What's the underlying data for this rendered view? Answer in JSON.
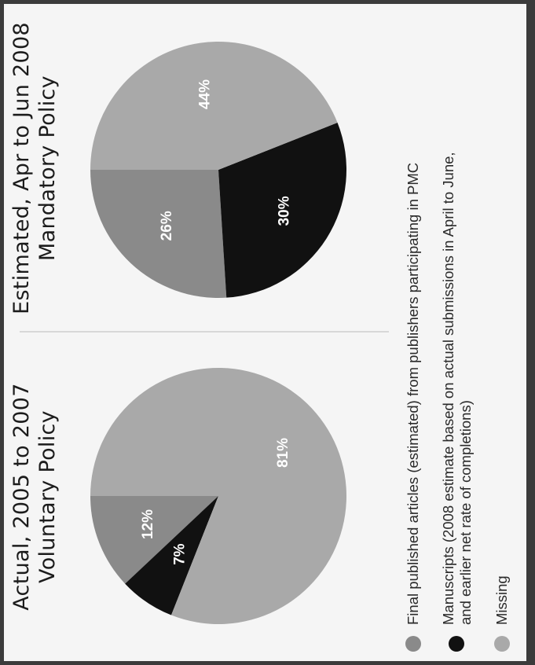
{
  "colors": {
    "final_published": "#8a8a8a",
    "manuscripts": "#111111",
    "missing": "#a9a9a9"
  },
  "chart_data": [
    {
      "type": "pie",
      "title_line1": "Actual, 2005 to 2007",
      "title_line2": "Voluntary Policy",
      "slices": [
        {
          "name": "Final published articles (estimated) from publishers participating in PMC",
          "value": 12,
          "label": "12%"
        },
        {
          "name": "Manuscripts (2008 estimate based on actual submissions in April to June, and earlier net rate of completions)",
          "value": 7,
          "label": "7%"
        },
        {
          "name": "Missing",
          "value": 81,
          "label": "81%"
        }
      ]
    },
    {
      "type": "pie",
      "title_line1": "Estimated, Apr to Jun 2008",
      "title_line2": "Mandatory Policy",
      "slices": [
        {
          "name": "Final published articles (estimated) from publishers participating in PMC",
          "value": 26,
          "label": "26%"
        },
        {
          "name": "Manuscripts (2008 estimate based on actual submissions in April to June, and earlier net rate of completions)",
          "value": 30,
          "label": "30%"
        },
        {
          "name": "Missing",
          "value": 44,
          "label": "44%"
        }
      ]
    }
  ],
  "legend": [
    {
      "key": "final_published",
      "line1": "Final published articles (estimated) from publishers participating in PMC"
    },
    {
      "key": "manuscripts",
      "line1": "Manuscripts (2008 estimate based on actual submissions in April to June,",
      "line2": "and earlier net rate of completions)"
    },
    {
      "key": "missing",
      "line1": "Missing"
    }
  ]
}
